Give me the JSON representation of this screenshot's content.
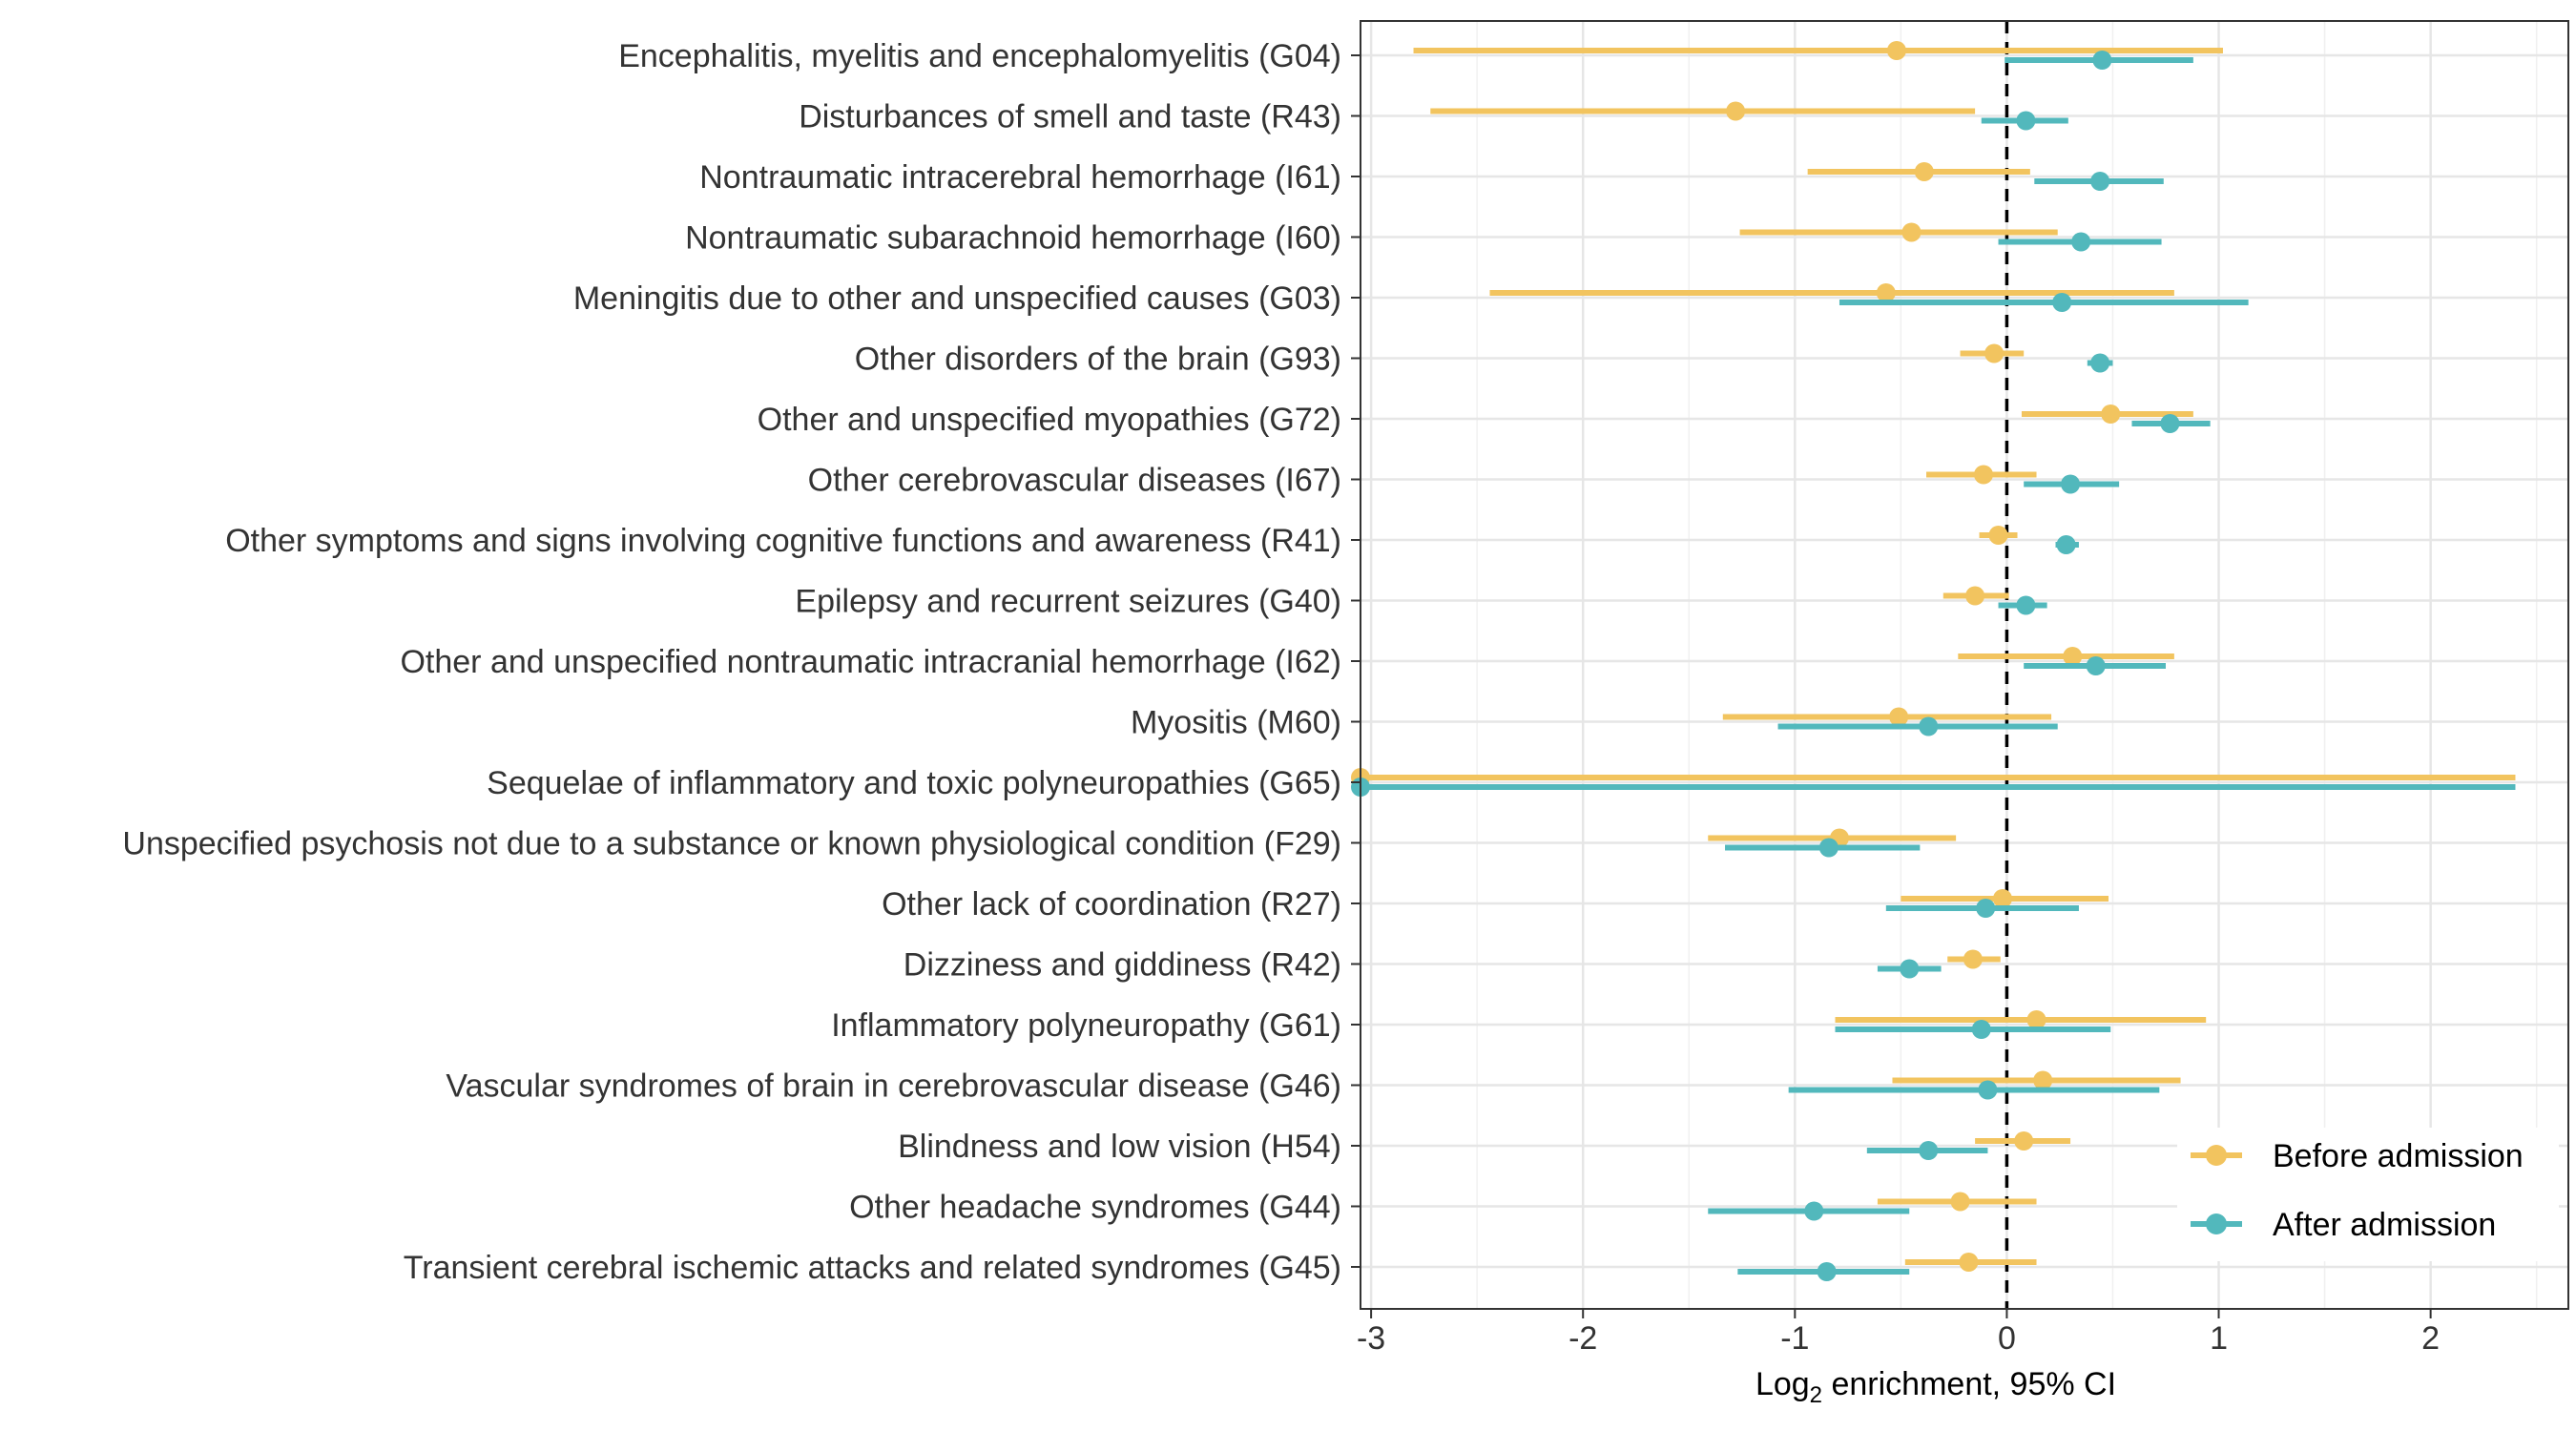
{
  "chart_data": {
    "type": "forest",
    "xlabel_main": "Log",
    "xlabel_sub": "2",
    "xlabel_rest": " enrichment, 95% CI",
    "xlim": [
      -3.05,
      2.65
    ],
    "major_ticks": [
      -3,
      -2,
      -1,
      0,
      1,
      2
    ],
    "tick_labels": [
      "-3",
      "-2",
      "-1",
      "0",
      "1",
      "2"
    ],
    "reference_line": 0,
    "grid": true,
    "legend_position": "bottom-right",
    "categories": [
      "Encephalitis, myelitis and encephalomyelitis (G04)",
      "Disturbances of smell and taste (R43)",
      "Nontraumatic intracerebral hemorrhage (I61)",
      "Nontraumatic subarachnoid hemorrhage (I60)",
      "Meningitis due to other and unspecified causes (G03)",
      "Other disorders of the brain (G93)",
      "Other and unspecified myopathies (G72)",
      "Other cerebrovascular diseases (I67)",
      "Other symptoms and signs involving cognitive functions and awareness (R41)",
      "Epilepsy and recurrent seizures (G40)",
      "Other and unspecified nontraumatic intracranial hemorrhage (I62)",
      "Myositis (M60)",
      "Sequelae of inflammatory and toxic polyneuropathies (G65)",
      "Unspecified psychosis not due to a substance or known physiological condition (F29)",
      "Other lack of coordination (R27)",
      "Dizziness and giddiness (R42)",
      "Inflammatory polyneuropathy (G61)",
      "Vascular syndromes of brain in cerebrovascular disease (G46)",
      "Blindness and low vision (H54)",
      "Other headache syndromes (G44)",
      "Transient cerebral ischemic attacks and related syndromes (G45)"
    ],
    "series": [
      {
        "name": "Before admission",
        "color": "#F2C45F",
        "estimate": [
          -0.52,
          -1.28,
          -0.39,
          -0.45,
          -0.57,
          -0.06,
          0.49,
          -0.11,
          -0.04,
          -0.15,
          0.31,
          -0.51,
          -3.05,
          -0.79,
          -0.02,
          -0.16,
          0.14,
          0.17,
          0.08,
          -0.22,
          -0.18
        ],
        "lower": [
          -2.8,
          -2.72,
          -0.94,
          -1.26,
          -2.44,
          -0.22,
          0.07,
          -0.38,
          -0.13,
          -0.3,
          -0.23,
          -1.34,
          -3.05,
          -1.41,
          -0.5,
          -0.28,
          -0.81,
          -0.54,
          -0.15,
          -0.61,
          -0.48
        ],
        "upper": [
          1.02,
          -0.15,
          0.11,
          0.24,
          0.79,
          0.08,
          0.88,
          0.14,
          0.05,
          0.01,
          0.79,
          0.21,
          2.4,
          -0.24,
          0.48,
          -0.03,
          0.94,
          0.82,
          0.3,
          0.14,
          0.14
        ]
      },
      {
        "name": "After admission",
        "color": "#52B8BC",
        "estimate": [
          0.45,
          0.09,
          0.44,
          0.35,
          0.26,
          0.44,
          0.77,
          0.3,
          0.28,
          0.09,
          0.42,
          -0.37,
          -3.05,
          -0.84,
          -0.1,
          -0.46,
          -0.12,
          -0.09,
          -0.37,
          -0.91,
          -0.85
        ],
        "lower": [
          -0.01,
          -0.12,
          0.13,
          -0.04,
          -0.79,
          0.38,
          0.59,
          0.08,
          0.23,
          -0.04,
          0.08,
          -1.08,
          -3.05,
          -1.33,
          -0.57,
          -0.61,
          -0.81,
          -1.03,
          -0.66,
          -1.41,
          -1.27
        ],
        "upper": [
          0.88,
          0.29,
          0.74,
          0.73,
          1.14,
          0.5,
          0.96,
          0.53,
          0.34,
          0.19,
          0.75,
          0.24,
          2.4,
          -0.41,
          0.34,
          -0.31,
          0.49,
          0.72,
          -0.09,
          -0.46,
          -0.46
        ]
      }
    ]
  }
}
